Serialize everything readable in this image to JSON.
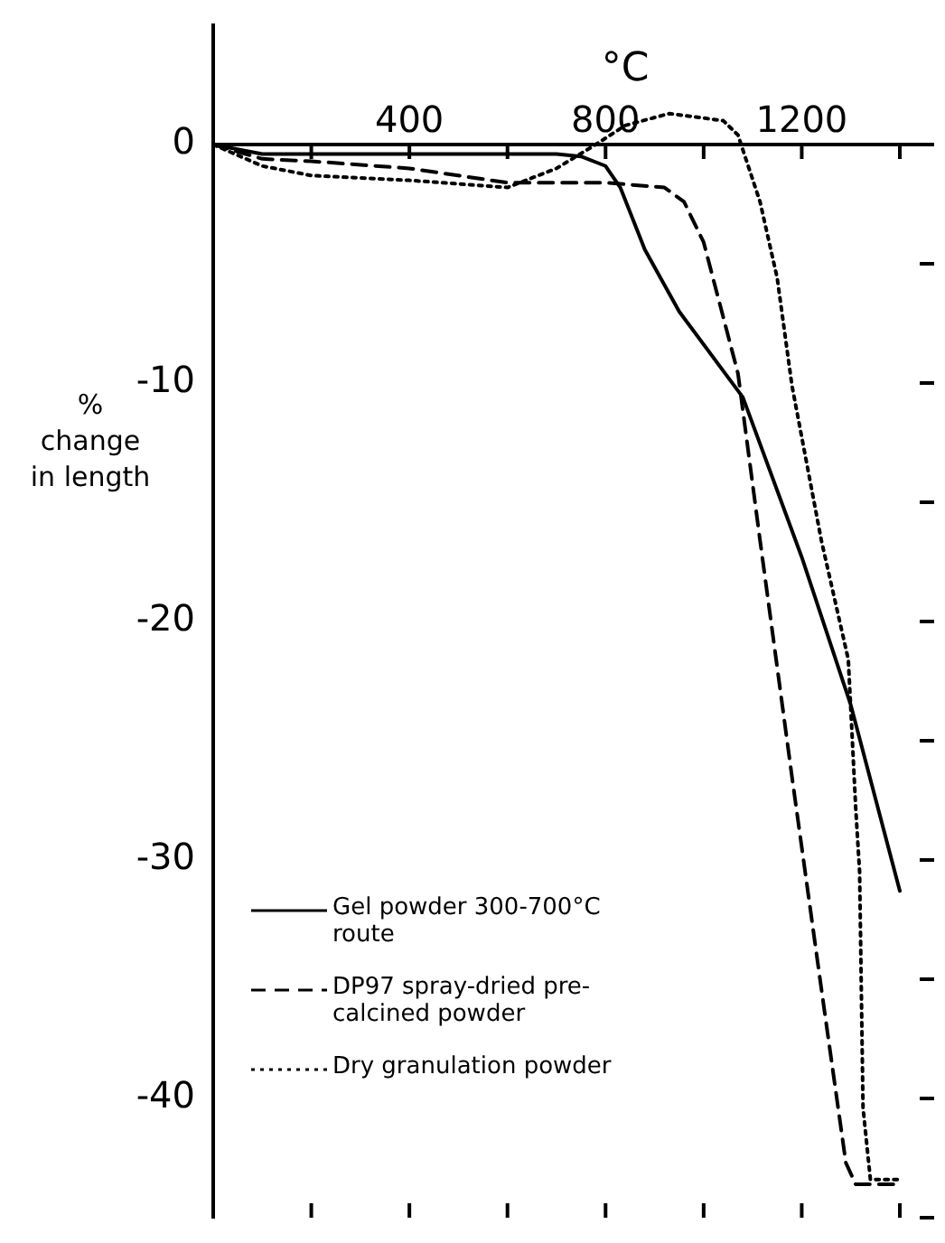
{
  "chart_data": {
    "type": "line",
    "xlabel": "°C",
    "ylabel": "% change in length",
    "xlim": [
      0,
      1470
    ],
    "ylim": [
      -45,
      5
    ],
    "xticks": [
      {
        "value": 200,
        "label": null
      },
      400,
      {
        "value": 600,
        "label": null
      },
      800,
      {
        "value": 1000,
        "label": null
      },
      1200,
      {
        "value": 1400,
        "label": null
      }
    ],
    "yticks": [
      0,
      {
        "value": -5,
        "label": null
      },
      -10,
      {
        "value": -15,
        "label": null
      },
      -20,
      {
        "value": -25,
        "label": null
      },
      -30,
      {
        "value": -35,
        "label": null
      },
      -40,
      {
        "value": -45,
        "label": null
      }
    ],
    "legend": "bottom left",
    "marker": "none",
    "series": [
      {
        "name": "Gel powder 300-700°C route",
        "color": "#000000",
        "line_style": "solid",
        "x": [
          0,
          100,
          200,
          400,
          600,
          700,
          750,
          800,
          830,
          880,
          950,
          1080,
          1200,
          1300,
          1400
        ],
        "values": [
          0,
          -0.4,
          -0.4,
          -0.4,
          -0.4,
          -0.4,
          -0.5,
          -0.9,
          -1.8,
          -4.4,
          -7,
          -10.6,
          -17.3,
          -23.5,
          -31.3
        ]
      },
      {
        "name": "DP97 spray-dried pre-calcined powder",
        "color": "#000000",
        "line_style": "dashed",
        "x": [
          0,
          100,
          200,
          400,
          600,
          800,
          920,
          960,
          1000,
          1070,
          1115,
          1180,
          1240,
          1290,
          1310,
          1400
        ],
        "values": [
          0,
          -0.6,
          -0.7,
          -1.0,
          -1.6,
          -1.6,
          -1.8,
          -2.4,
          -4.1,
          -9.6,
          -16.6,
          -26.5,
          -35.4,
          -42.7,
          -43.6,
          -43.6
        ]
      },
      {
        "name": "Dry granulation powder",
        "color": "#000000",
        "line_style": "dotted",
        "x": [
          0,
          100,
          200,
          400,
          600,
          700,
          780,
          840,
          930,
          1040,
          1070,
          1115,
          1150,
          1180,
          1240,
          1295,
          1310,
          1318,
          1325,
          1340,
          1400
        ],
        "values": [
          0,
          -0.9,
          -1.3,
          -1.5,
          -1.8,
          -1.0,
          0,
          0.8,
          1.3,
          1.0,
          0.4,
          -2.4,
          -5.6,
          -10.1,
          -16.6,
          -21.6,
          -27.8,
          -30.5,
          -40.4,
          -43.4,
          -43.4
        ]
      }
    ]
  }
}
